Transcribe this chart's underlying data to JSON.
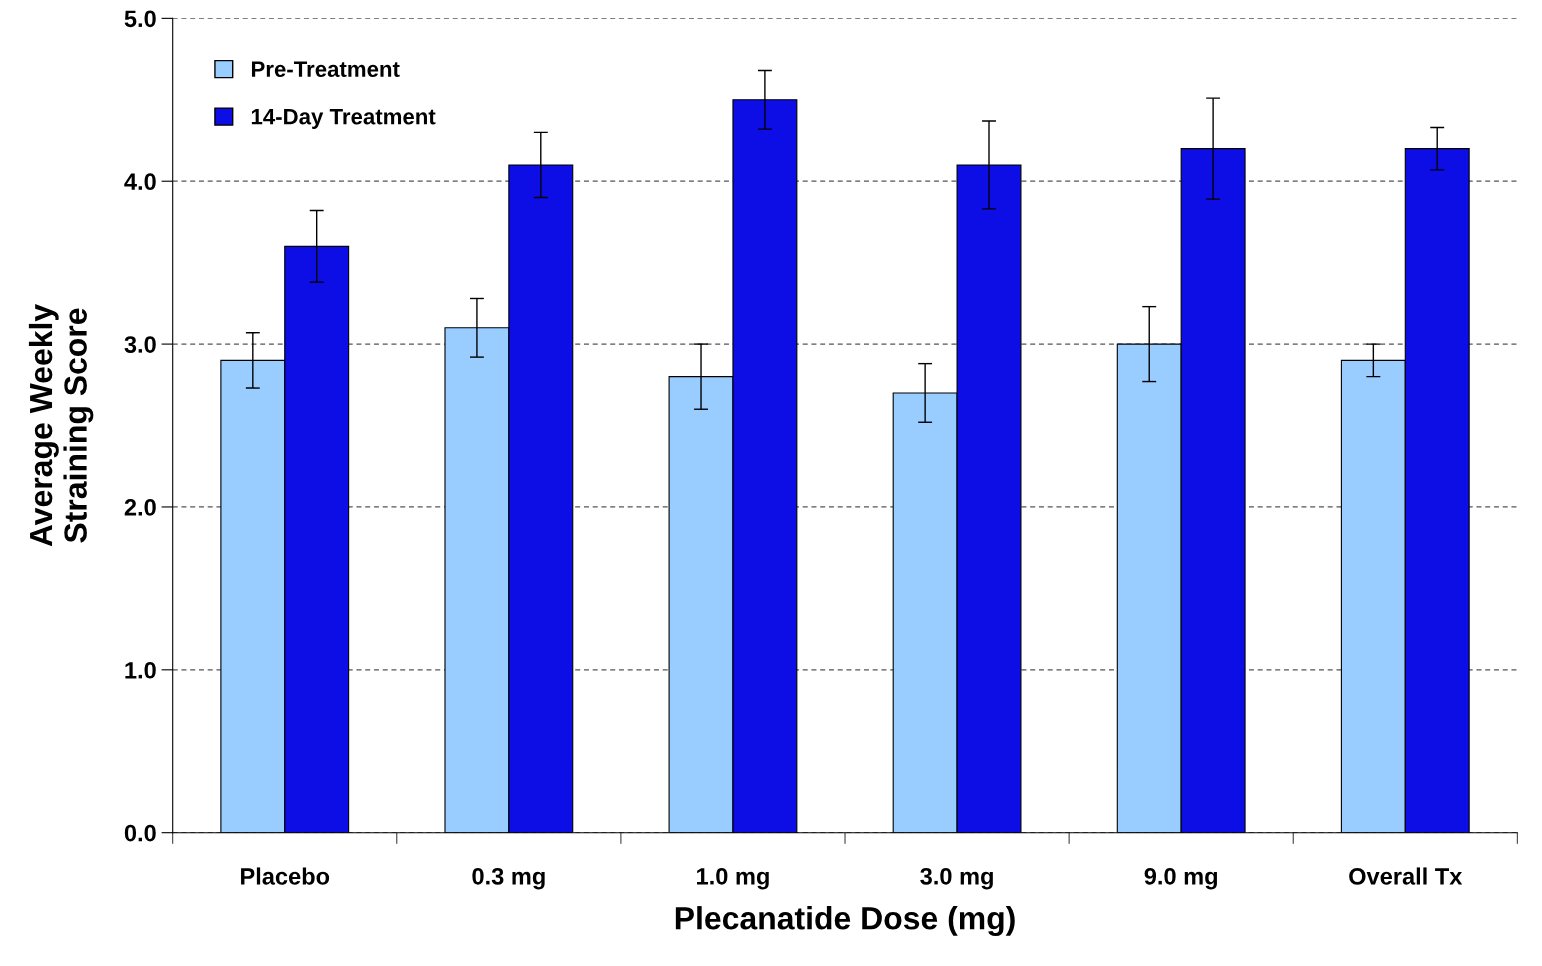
{
  "chart_data": {
    "type": "bar",
    "xlabel": "Plecanatide Dose (mg)",
    "ylabel": "Average Weekly\nStraining Score",
    "categories": [
      "Placebo",
      "0.3 mg",
      "1.0 mg",
      "3.0 mg",
      "9.0 mg",
      "Overall Tx"
    ],
    "series": [
      {
        "name": "Pre-Treatment",
        "color": "#99ccff",
        "values": [
          2.9,
          3.1,
          2.8,
          2.7,
          3.0,
          2.9
        ],
        "errors": [
          0.17,
          0.18,
          0.2,
          0.18,
          0.23,
          0.1
        ]
      },
      {
        "name": "14-Day Treatment",
        "color": "#0d0de6",
        "values": [
          3.6,
          4.1,
          4.5,
          4.1,
          4.2,
          4.2
        ],
        "errors": [
          0.22,
          0.2,
          0.18,
          0.27,
          0.31,
          0.13
        ]
      }
    ],
    "ylim": [
      0,
      5
    ],
    "yticks": [
      {
        "value": 0,
        "label": "0.0"
      },
      {
        "value": 1,
        "label": "1.0"
      },
      {
        "value": 2,
        "label": "2.0"
      },
      {
        "value": 3,
        "label": "3.0"
      },
      {
        "value": 4,
        "label": "4.0"
      },
      {
        "value": 5,
        "label": "5.0"
      }
    ],
    "grid": "y",
    "legend": "top left"
  }
}
